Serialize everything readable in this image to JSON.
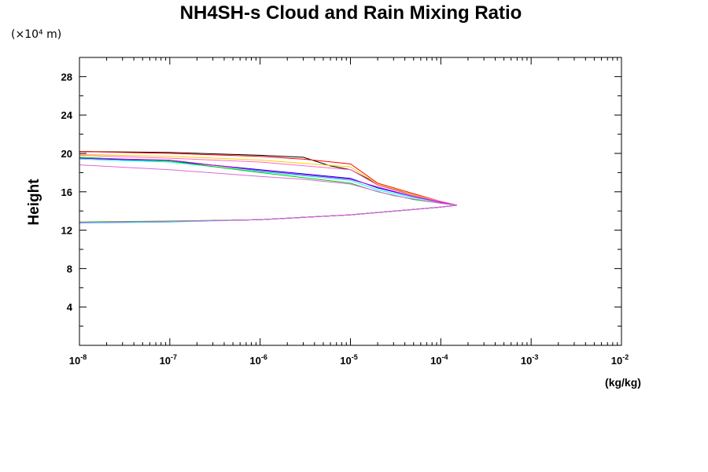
{
  "chart_data": {
    "type": "line",
    "title": "NH4SH-s Cloud and Rain Mixing Ratio",
    "ylabel": "Height",
    "yunit": "(×10⁴ m)",
    "xlabel": "(kg/kg)",
    "xscale": "log",
    "xlim": [
      1e-08,
      0.01
    ],
    "ylim": [
      0,
      30
    ],
    "xticks": [
      {
        "base": "10",
        "exp": "-8"
      },
      {
        "base": "10",
        "exp": "-7"
      },
      {
        "base": "10",
        "exp": "-6"
      },
      {
        "base": "10",
        "exp": "-5"
      },
      {
        "base": "10",
        "exp": "-4"
      },
      {
        "base": "10",
        "exp": "-3"
      },
      {
        "base": "10",
        "exp": "-2"
      }
    ],
    "yticks": [
      "4",
      "8",
      "12",
      "16",
      "20",
      "24",
      "28"
    ],
    "yticks_values": [
      4,
      8,
      12,
      16,
      20,
      24,
      28
    ],
    "series": [
      {
        "color": "#000000",
        "x": [
          1e-08,
          1e-07,
          1e-06,
          3e-06,
          6e-06,
          1e-05,
          1.6e-05,
          2e-05,
          5e-05,
          0.0001,
          0.00015,
          0.0001,
          1e-05,
          1e-06,
          1e-07,
          1e-08
        ],
        "y": [
          20.2,
          20.1,
          19.8,
          19.6,
          18.7,
          18.3,
          17.3,
          16.7,
          15.7,
          15.0,
          14.6,
          14.4,
          13.6,
          13.1,
          12.9,
          12.8
        ]
      },
      {
        "color": "#ff0000",
        "x": [
          1e-08,
          1e-07,
          1e-06,
          3e-06,
          1e-05,
          2e-05,
          5e-05,
          0.0001,
          0.00015,
          0.0001,
          1e-05,
          1e-06,
          1e-07,
          1e-08
        ],
        "y": [
          20.2,
          20.0,
          19.7,
          19.4,
          18.9,
          16.9,
          15.8,
          15.0,
          14.6,
          14.4,
          13.6,
          13.1,
          12.9,
          12.8
        ]
      },
      {
        "color": "#ffcc00",
        "x": [
          1e-08,
          1e-07,
          1e-06,
          1e-05,
          2e-05,
          5e-05,
          0.0001,
          0.00015,
          0.0001,
          1e-05,
          1e-06,
          1e-07,
          1e-08
        ],
        "y": [
          19.9,
          19.7,
          19.3,
          18.6,
          16.8,
          15.7,
          15.0,
          14.6,
          14.4,
          13.6,
          13.1,
          12.9,
          12.8
        ]
      },
      {
        "color": "#ff66cc",
        "x": [
          1e-08,
          1e-07,
          1e-06,
          1e-05,
          2e-05,
          5e-05,
          0.0001,
          0.00015,
          0.0001,
          1e-05,
          1e-06,
          1e-07,
          1e-08
        ],
        "y": [
          19.8,
          19.5,
          19.1,
          18.3,
          16.7,
          15.6,
          15.0,
          14.6,
          14.4,
          13.6,
          13.1,
          12.9,
          12.8
        ]
      },
      {
        "color": "#0000ff",
        "x": [
          1e-08,
          1e-07,
          1e-06,
          1e-05,
          2e-05,
          5e-05,
          0.0001,
          0.00015,
          0.0001,
          1e-05,
          1e-06,
          1e-07,
          1e-08
        ],
        "y": [
          19.5,
          19.2,
          18.3,
          17.4,
          16.4,
          15.5,
          14.9,
          14.6,
          14.4,
          13.6,
          13.1,
          12.9,
          12.8
        ]
      },
      {
        "color": "#00ffff",
        "x": [
          1e-08,
          1e-07,
          1e-06,
          1e-05,
          2e-05,
          5e-05,
          0.0001,
          0.00015,
          0.0001,
          1e-05,
          1e-06,
          1e-07,
          1e-08
        ],
        "y": [
          19.4,
          19.1,
          18.1,
          17.2,
          16.2,
          15.4,
          14.9,
          14.6,
          14.4,
          13.6,
          13.1,
          12.85,
          12.75
        ]
      },
      {
        "color": "#00cc00",
        "x": [
          1e-08,
          1e-07,
          1e-06,
          1e-05,
          2e-05,
          5e-05,
          0.0001,
          0.00015,
          0.0001,
          1e-05,
          1e-06,
          1e-07,
          1e-08
        ],
        "y": [
          19.6,
          19.2,
          18.0,
          16.9,
          16.0,
          15.2,
          14.8,
          14.6,
          14.4,
          13.6,
          13.1,
          12.95,
          12.85
        ]
      },
      {
        "color": "#cc00cc",
        "x": [
          1e-08,
          1e-07,
          1e-06,
          1e-05,
          2e-05,
          5e-05,
          0.0001,
          0.00015,
          0.0001,
          1e-05,
          1e-06,
          1e-07,
          1e-08
        ],
        "y": [
          19.5,
          19.3,
          18.2,
          17.3,
          16.5,
          15.5,
          14.9,
          14.6,
          14.4,
          13.6,
          13.1,
          12.9,
          12.8
        ]
      },
      {
        "color": "#dd66dd",
        "x": [
          1e-08,
          1e-07,
          1e-06,
          3e-06,
          1e-05,
          3e-05,
          0.0001,
          0.00015,
          0.0001,
          1e-05,
          1e-06,
          1e-07,
          1e-08
        ],
        "y": [
          18.8,
          18.3,
          17.6,
          17.3,
          16.8,
          15.6,
          14.8,
          14.6,
          14.4,
          13.6,
          13.1,
          12.9,
          12.8
        ]
      }
    ]
  }
}
